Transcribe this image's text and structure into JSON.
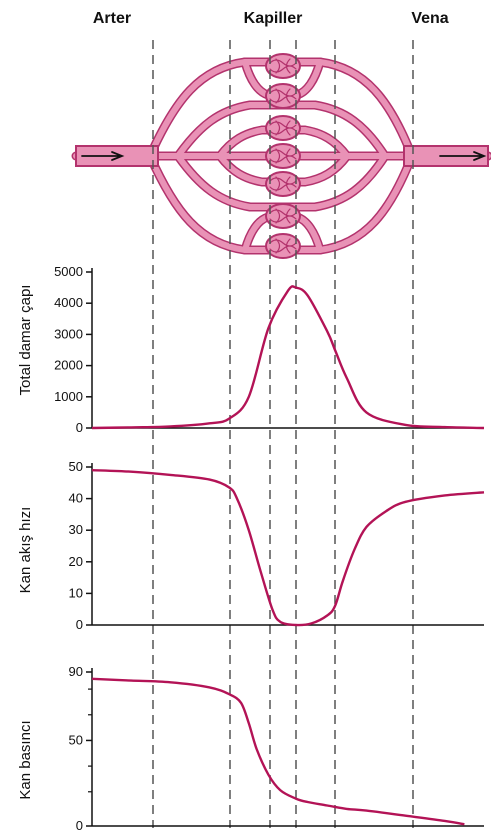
{
  "headers": {
    "arter": "Arter",
    "kapiller": "Kapiller",
    "vena": "Vena"
  },
  "colors": {
    "vessel_fill": "#e992b6",
    "vessel_stroke": "#b3336d",
    "curve": "#b31356",
    "guide": "#555555"
  },
  "chart_data": [
    {
      "type": "line",
      "ylabel": "Total damar çapı",
      "ylim": [
        0,
        5000
      ],
      "yticks": [
        "0",
        "1000",
        "2000",
        "3000",
        "4000",
        "5000"
      ],
      "xlim": [
        0,
        100
      ],
      "grid": false,
      "series": [
        {
          "x": [
            0,
            10,
            20,
            30,
            35,
            40,
            45,
            50,
            52,
            55,
            60,
            62,
            65,
            70,
            80,
            90,
            100
          ],
          "y": [
            0,
            20,
            50,
            150,
            300,
            1000,
            3200,
            4400,
            4500,
            4250,
            3100,
            2500,
            1600,
            500,
            100,
            30,
            0
          ]
        }
      ]
    },
    {
      "type": "line",
      "ylabel": "Kan akış hızı",
      "ylim": [
        0,
        50
      ],
      "yticks": [
        "0",
        "10",
        "20",
        "30",
        "40",
        "50"
      ],
      "xlim": [
        0,
        100
      ],
      "grid": false,
      "series": [
        {
          "x": [
            0,
            10,
            20,
            30,
            35,
            37,
            40,
            43,
            46,
            48,
            52,
            56,
            60,
            62,
            64,
            67,
            70,
            75,
            80,
            90,
            100
          ],
          "y": [
            49,
            48.5,
            47.5,
            46,
            43.5,
            40,
            30,
            17,
            5,
            1,
            0,
            0.5,
            3,
            6,
            14,
            24,
            31,
            36,
            39,
            41,
            42
          ]
        }
      ]
    },
    {
      "type": "line",
      "ylabel": "Kan basıncı",
      "ylim": [
        0,
        90
      ],
      "yticks": [
        "0",
        "50",
        "90"
      ],
      "xlim": [
        0,
        100
      ],
      "grid": false,
      "series": [
        {
          "x": [
            0,
            10,
            20,
            30,
            35,
            38,
            40,
            42,
            45,
            48,
            52,
            55,
            60,
            65,
            70,
            80,
            90,
            95
          ],
          "y": [
            86,
            85,
            84,
            81,
            77,
            72,
            60,
            45,
            30,
            21,
            16,
            14,
            12,
            10,
            9,
            6,
            3,
            1
          ]
        }
      ]
    }
  ]
}
